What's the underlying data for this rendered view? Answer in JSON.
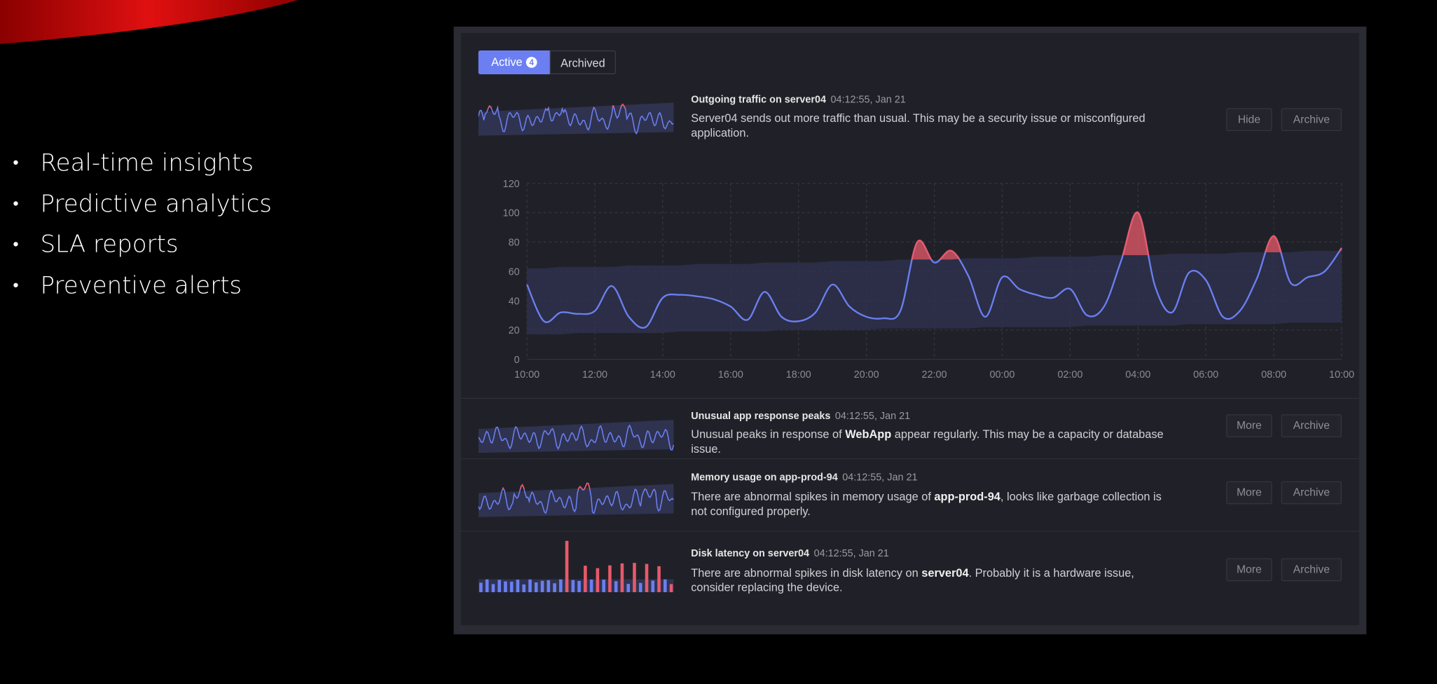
{
  "bullets": [
    "Real-time insights",
    "Predictive analytics",
    "SLA reports",
    "Preventive alerts"
  ],
  "tabs": [
    {
      "label": "Active",
      "badge": 4
    },
    {
      "label": "Archived"
    }
  ],
  "alerts": [
    {
      "title": "Outgoing traffic on server04",
      "time": "04:12:55, Jan 21",
      "description": [
        {
          "text": "Server04 sends out more traffic than usual. This may be a security issue or misconfigured application."
        }
      ],
      "buttons": [
        "Hide",
        "Archive"
      ]
    },
    {
      "title": "Unusual app response peaks",
      "time": "04:12:55, Jan 21",
      "description": [
        {
          "text": "Unusual peaks in response of "
        },
        {
          "text": "WebApp",
          "bold": true
        },
        {
          "text": " appear regularly. This may be a capacity or database issue."
        }
      ],
      "buttons": [
        "More",
        "Archive"
      ]
    },
    {
      "title": "Memory usage on app-prod-94",
      "time": "04:12:55, Jan 21",
      "description": [
        {
          "text": "There are abnormal spikes in memory usage of "
        },
        {
          "text": "app-prod-94",
          "bold": true
        },
        {
          "text": ", looks like garbage collection is not configured properly."
        }
      ],
      "buttons": [
        "More",
        "Archive"
      ]
    },
    {
      "title": "Disk latency on server04",
      "time": "04:12:55, Jan 21",
      "description": [
        {
          "text": "There are abnormal spikes in disk latency on "
        },
        {
          "text": "server04",
          "bold": true
        },
        {
          "text": ". Probably it is a hardware issue, consider replacing the device."
        }
      ],
      "buttons": [
        "More",
        "Archive"
      ]
    }
  ],
  "chart_data": {
    "type": "line",
    "categories": [
      "10:00",
      null,
      null,
      null,
      "12:00",
      null,
      null,
      null,
      "14:00",
      null,
      null,
      null,
      "16:00",
      null,
      null,
      null,
      "18:00",
      null,
      null,
      null,
      "20:00",
      null,
      null,
      null,
      "22:00",
      null,
      null,
      null,
      "00:00",
      null,
      null,
      null,
      "02:00",
      null,
      null,
      null,
      "04:00",
      null,
      null,
      null,
      "06:00",
      null,
      null,
      null,
      "08:00",
      null,
      null,
      null,
      "10:00"
    ],
    "values": [
      51,
      26,
      32,
      31,
      33,
      50,
      29,
      22,
      42,
      44,
      43,
      41,
      36,
      27,
      46,
      29,
      26,
      32,
      51,
      36,
      29,
      28,
      33,
      80,
      66,
      74,
      57,
      29,
      56,
      48,
      44,
      42,
      48,
      30,
      36,
      67,
      100,
      50,
      32,
      59,
      54,
      29,
      33,
      55,
      84,
      52,
      56,
      60,
      76
    ],
    "band_upper": [
      62,
      62,
      63,
      63,
      63,
      63,
      64,
      64,
      64,
      64,
      65,
      65,
      65,
      65,
      66,
      66,
      66,
      66,
      67,
      67,
      67,
      67,
      68,
      68,
      68,
      68,
      69,
      69,
      69,
      69,
      70,
      70,
      70,
      70,
      71,
      71,
      71,
      71,
      72,
      72,
      72,
      72,
      73,
      73,
      73,
      73,
      74,
      74,
      74
    ],
    "band_lower": [
      17,
      17,
      17,
      18,
      18,
      18,
      18,
      18,
      18,
      19,
      19,
      19,
      19,
      19,
      19,
      20,
      20,
      20,
      20,
      20,
      20,
      21,
      21,
      21,
      21,
      21,
      21,
      22,
      22,
      22,
      22,
      22,
      22,
      23,
      23,
      23,
      23,
      23,
      23,
      24,
      24,
      24,
      24,
      24,
      24,
      25,
      25,
      25,
      25
    ],
    "ylim": [
      0,
      120
    ],
    "yticks": [
      0,
      20,
      40,
      60,
      80,
      100,
      120
    ],
    "color": "#6b7ff0",
    "anomaly_color": "#e8596a",
    "band_color": "#2f3350",
    "grid": true
  }
}
